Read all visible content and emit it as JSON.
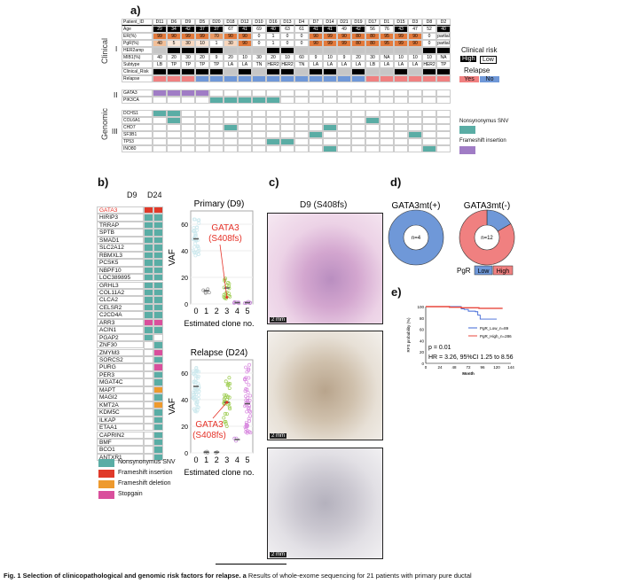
{
  "panel_a": {
    "label": "a)",
    "section_clinical": "Clinical",
    "section_genomic": "Genomic",
    "tier_I": "I",
    "tier_II": "II",
    "tier_III": "III",
    "columns": [
      "D11",
      "D6",
      "D9",
      "D5",
      "D20",
      "D18",
      "D12",
      "D10",
      "D16",
      "D13",
      "D4",
      "D7",
      "D14",
      "D21",
      "D19",
      "D17",
      "D1",
      "D15",
      "D3",
      "D8",
      "D2"
    ],
    "row_labels": {
      "id": "Patient_ID",
      "age": "Age",
      "er": "ER(%)",
      "pgr": "PgR(%)",
      "her2": "HER2amp",
      "mib1": "MIB1(%)",
      "subtype": "Subtype",
      "risk": "Clinical_Risk",
      "relapse": "Relapse"
    },
    "age": [
      "29",
      "34",
      "42",
      "37",
      "37",
      "67",
      "41",
      "69",
      "40",
      "63",
      "61",
      "41",
      "41",
      "49",
      "42",
      "56",
      "76",
      "43",
      "47",
      "52",
      "40"
    ],
    "er": [
      "99",
      "90",
      "99",
      "99",
      "70",
      "90",
      "90",
      "0",
      "1",
      "0",
      "0",
      "90",
      "99",
      "90",
      "80",
      "80",
      "95",
      "99",
      "90",
      "0",
      "partial"
    ],
    "pgr": [
      "40",
      "5",
      "30",
      "10",
      "1",
      "30",
      "90",
      "0",
      "1",
      "0",
      "0",
      "90",
      "99",
      "99",
      "80",
      "80",
      "95",
      "99",
      "90",
      "0",
      "partial"
    ],
    "her2amp": [
      0,
      1,
      1,
      1,
      1,
      0,
      0,
      0,
      1,
      1,
      0,
      0,
      0,
      0,
      0,
      0,
      0,
      0,
      0,
      1,
      1
    ],
    "mib1": [
      "40",
      "20",
      "30",
      "20",
      "9",
      "20",
      "10",
      "30",
      "20",
      "10",
      "60",
      "9",
      "10",
      "9",
      "20",
      "30",
      "NA",
      "10",
      "10",
      "10",
      "NA"
    ],
    "subtype": [
      "LB",
      "TP",
      "TP",
      "TP",
      "TP",
      "LA",
      "LA",
      "TN",
      "HER2",
      "HER2",
      "TN",
      "LA",
      "LA",
      "LA",
      "LA",
      "LB",
      "LA",
      "LA",
      "LA",
      "HER2",
      "TP"
    ],
    "clinical_risk_high": [
      1,
      1,
      1,
      1,
      1,
      0,
      1,
      0,
      1,
      1,
      0,
      1,
      1,
      0,
      1,
      0,
      0,
      1,
      0,
      1,
      1
    ],
    "relapse": [
      1,
      1,
      1,
      0,
      0,
      0,
      0,
      0,
      0,
      0,
      0,
      0,
      0,
      0,
      0,
      1,
      1,
      1,
      1,
      1,
      1
    ],
    "tier2_genes": [
      {
        "name": "GATA3",
        "type": "fs",
        "cols": [
          0,
          1,
          2,
          3
        ]
      },
      {
        "name": "PIK3CA",
        "type": "snv",
        "cols": [
          4,
          5,
          6,
          7,
          8
        ]
      }
    ],
    "tier3_genes": [
      {
        "name": "DCHS1",
        "type": "snv",
        "cols": [
          0,
          1
        ]
      },
      {
        "name": "COL6A1",
        "type": "snv",
        "cols": [
          1,
          15
        ]
      },
      {
        "name": "CHD7",
        "type": "snv",
        "cols": [
          5,
          12
        ]
      },
      {
        "name": "SF3B1",
        "type": "snv",
        "cols": [
          11,
          18
        ]
      },
      {
        "name": "TP53",
        "type": "snv",
        "cols": [
          8,
          9
        ]
      },
      {
        "name": "INO80",
        "type": "snv",
        "cols": [
          12,
          19
        ]
      }
    ],
    "legend": {
      "clinical_risk": "Clinical risk",
      "high": "High",
      "low": "Low",
      "relapse": "Relapse",
      "yes": "Yes",
      "no": "No",
      "snv": "Nonsynonymus SNV",
      "fs_ins": "Frameshift insertion"
    }
  },
  "colors": {
    "snv": "#5aada5",
    "fs_ins": "#a07cc5",
    "fs_del": "#ee9a2e",
    "stopgain": "#d94f9c",
    "gata3_fs": "#e03a2a",
    "yes": "#f08080",
    "no": "#6f98d8",
    "er_high": "#e37a3c",
    "gray": "#c6c6c6",
    "red": "#e53228"
  },
  "panel_b": {
    "label": "b)",
    "col_d9": "D9",
    "col_d24": "D24",
    "genes": [
      [
        "GATA3",
        "fs_ins",
        "fs_ins"
      ],
      [
        "HIRIP3",
        "snv",
        "snv"
      ],
      [
        "TRRAP",
        "snv",
        "snv"
      ],
      [
        "SPTB",
        "snv",
        "snv"
      ],
      [
        "SMAD1",
        "snv",
        "snv"
      ],
      [
        "SLC2A12",
        "snv",
        "snv"
      ],
      [
        "RBMXL3",
        "snv",
        "snv"
      ],
      [
        "PCSK5",
        "snv",
        "snv"
      ],
      [
        "NBPF10",
        "snv",
        "snv"
      ],
      [
        "LOC389895",
        "snv",
        "snv"
      ],
      [
        "GRHL3",
        "snv",
        "snv"
      ],
      [
        "COL11A2",
        "snv",
        "snv"
      ],
      [
        "CLCA2",
        "snv",
        "snv"
      ],
      [
        "CELSR2",
        "snv",
        "snv"
      ],
      [
        "C2CD4A",
        "snv",
        "snv"
      ],
      [
        "ARR3",
        "stopgain",
        "stopgain"
      ],
      [
        "ACIN1",
        "snv",
        "snv"
      ],
      [
        "PGAP2",
        "snv",
        ""
      ],
      [
        "ZNF30",
        "",
        "snv"
      ],
      [
        "ZMYM3",
        "",
        "stopgain"
      ],
      [
        "SORCS2",
        "",
        "snv"
      ],
      [
        "PURG",
        "",
        "stopgain"
      ],
      [
        "PER3",
        "",
        "snv"
      ],
      [
        "MGAT4C",
        "",
        "snv"
      ],
      [
        "MAPT",
        "",
        "fs_del"
      ],
      [
        "MAGI2",
        "",
        "snv"
      ],
      [
        "KMT2A",
        "",
        "fs_del"
      ],
      [
        "KDM5C",
        "",
        "snv"
      ],
      [
        "ILKAP",
        "",
        "snv"
      ],
      [
        "ETAA1",
        "",
        "snv"
      ],
      [
        "CAPRIN2",
        "",
        "snv"
      ],
      [
        "BMF",
        "",
        "snv"
      ],
      [
        "BCO1",
        "",
        "snv"
      ],
      [
        "ANTXR1",
        "",
        "snv"
      ]
    ],
    "legend": {
      "snv": "Nonsynonymus SNV",
      "fs_ins": "Frameshift insertion",
      "fs_del": "Frameshift deletion",
      "stopgain": "Stopgain"
    }
  },
  "chart_data": [
    {
      "type": "scatter",
      "title": "Primary (D9)",
      "xlabel": "Estimated clone no.",
      "ylabel": "VAF",
      "ylim": [
        0,
        70
      ],
      "yticks": [
        "0",
        "20",
        "40",
        "60"
      ],
      "xticks": [
        "0",
        "1",
        "2",
        "3",
        "4",
        "5"
      ],
      "annotation": {
        "line1": "GATA3",
        "line2": "(S408fs)",
        "clone": 3,
        "vaf": 5
      },
      "clones": [
        {
          "clone": 0,
          "median": 49,
          "min": 35,
          "max": 65,
          "n": 40,
          "color": "#cde9ee"
        },
        {
          "clone": 1,
          "median": 10,
          "min": 7,
          "max": 13,
          "n": 5,
          "color": "#999999"
        },
        {
          "clone": 3,
          "median": 12,
          "min": 4,
          "max": 21,
          "n": 20,
          "color": "#9ccc4e"
        },
        {
          "clone": 4,
          "median": 1,
          "min": 0.5,
          "max": 2,
          "n": 6,
          "color": "#c78ad8"
        },
        {
          "clone": 5,
          "median": 1,
          "min": 0.5,
          "max": 2,
          "n": 6,
          "color": "#c78ad8"
        }
      ]
    },
    {
      "type": "scatter",
      "title": "Relapse (D24)",
      "xlabel": "Estimated clone no.",
      "ylabel": "VAF",
      "ylim": [
        0,
        70
      ],
      "yticks": [
        "0",
        "20",
        "40",
        "60"
      ],
      "xticks": [
        "0",
        "1",
        "2",
        "3",
        "4",
        "5"
      ],
      "annotation": {
        "line1": "GATA3",
        "line2": "(S408fs)",
        "clone": 3,
        "vaf": 38
      },
      "clones": [
        {
          "clone": 0,
          "median": 50,
          "min": 30,
          "max": 65,
          "n": 60,
          "color": "#cde9ee"
        },
        {
          "clone": 1,
          "median": 0.5,
          "min": 0,
          "max": 1,
          "n": 3,
          "color": "#999999"
        },
        {
          "clone": 2,
          "median": 0.5,
          "min": 0,
          "max": 1,
          "n": 2,
          "color": "#999999"
        },
        {
          "clone": 3,
          "median": 38,
          "min": 20,
          "max": 58,
          "n": 30,
          "color": "#9ccc4e"
        },
        {
          "clone": 4,
          "median": 10,
          "min": 9,
          "max": 12,
          "n": 3,
          "color": "#c78ad8"
        },
        {
          "clone": 5,
          "median": 37,
          "min": 15,
          "max": 68,
          "n": 50,
          "color": "#d98be0"
        }
      ]
    },
    {
      "type": "pie",
      "title": "GATA3mt(+)",
      "center_label": "n=4",
      "values": [
        4,
        0
      ],
      "labels": [
        "Low",
        "High"
      ]
    },
    {
      "type": "pie",
      "title": "GATA3mt(-)",
      "center_label": "n=12",
      "values": [
        2,
        10
      ],
      "labels": [
        "Low",
        "High"
      ]
    },
    {
      "type": "line",
      "xlabel": "Month",
      "ylabel": "RFS probability (%)",
      "xlim": [
        0,
        144
      ],
      "ylim": [
        0,
        100
      ],
      "xticks": [
        0,
        24,
        48,
        72,
        96,
        120,
        144
      ],
      "yticks": [
        0,
        20,
        40,
        60,
        80,
        100
      ],
      "series": [
        {
          "name": "PgR_Low_n=89",
          "color": "#3e66d6",
          "x": [
            0,
            30,
            60,
            65,
            72,
            84,
            88,
            92,
            120
          ],
          "y": [
            100,
            100,
            96,
            95,
            92,
            91,
            85,
            78,
            78
          ]
        },
        {
          "name": "PgR_High_n=286",
          "color": "#e8473c",
          "x": [
            0,
            40,
            60,
            90,
            130
          ],
          "y": [
            100,
            99,
            98,
            97,
            97
          ]
        }
      ],
      "stats": {
        "p": "p = 0.01",
        "hr": "HR = 3.26, 95%CI 1.25 to 8.56"
      }
    }
  ],
  "panel_c": {
    "label": "c)",
    "title": "D9 (S408fs)",
    "scale": "2 mm"
  },
  "panel_d": {
    "label": "d)",
    "legend_title": "PgR",
    "low": "Low",
    "high": "High"
  },
  "panel_e": {
    "label": "e)"
  },
  "caption": {
    "bold": "Fig. 1 Selection of clinicopathological and genomic risk factors for relapse. a",
    "text": " Results of whole-exome sequencing for 21 patients with primary pure ductal"
  }
}
